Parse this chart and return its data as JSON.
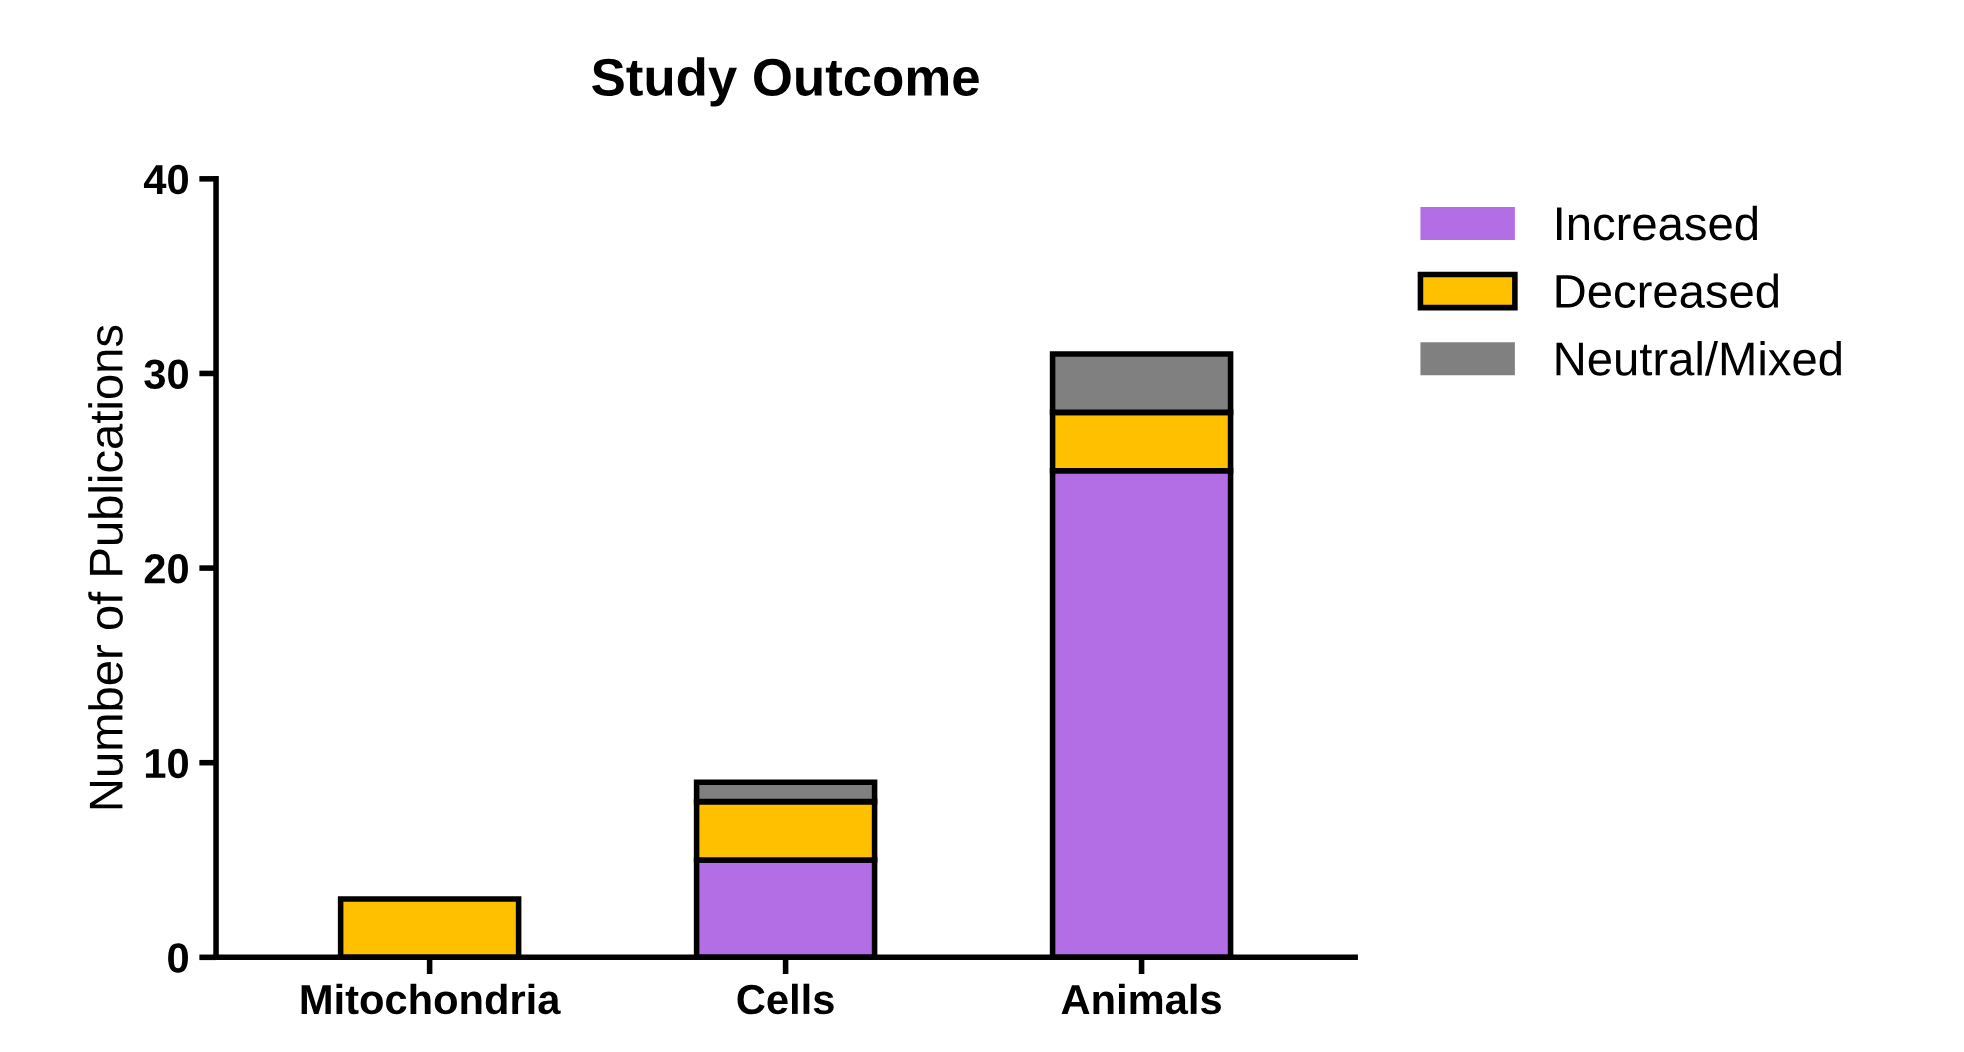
{
  "chart_data": {
    "type": "bar",
    "title": "Study Outcome",
    "ylabel": "Number of Publications",
    "categories": [
      "Mitochondria",
      "Cells",
      "Animals"
    ],
    "stacked": true,
    "series": [
      {
        "name": "Increased",
        "color": "#b36ee6",
        "values": [
          0,
          5,
          25
        ]
      },
      {
        "name": "Decreased",
        "color": "#ffc000",
        "values": [
          3,
          3,
          3
        ]
      },
      {
        "name": "Neutral/Mixed",
        "color": "#808080",
        "values": [
          0,
          1,
          3
        ]
      }
    ],
    "ylim": [
      0,
      40
    ],
    "yticks": [
      0,
      10,
      20,
      30,
      40
    ],
    "grid": false,
    "legend": "right"
  }
}
